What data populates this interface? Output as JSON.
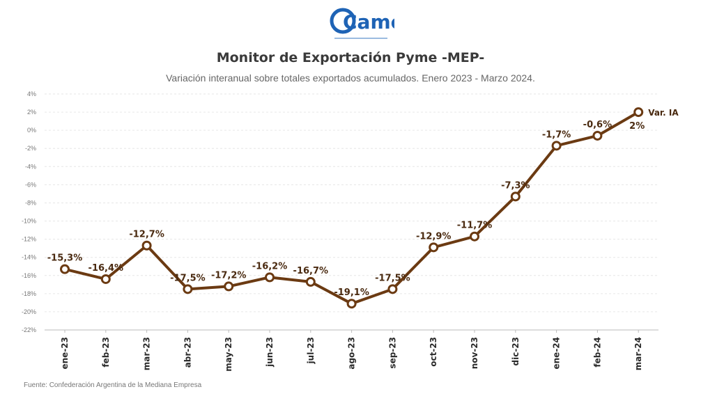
{
  "header": {
    "logo_text": "Came",
    "logo_caption": "Confederación Argentina de la Mediana Empresa",
    "title": "Monitor de Exportación Pyme -MEP-",
    "subtitle": "Variación interanual sobre totales exportados acumulados. Enero 2023 - Marzo 2024."
  },
  "footer": {
    "source": "Fuente: Confederación Argentina de la Mediana Empresa"
  },
  "colors": {
    "line": "#6b3a12",
    "marker_fill": "#ffffff",
    "grid": "#e6e6e6"
  },
  "chart_data": {
    "type": "line",
    "title": "Monitor de Exportación Pyme -MEP-",
    "subtitle": "Variación interanual sobre totales exportados acumulados. Enero 2023 - Marzo 2024.",
    "categories": [
      "ene-23",
      "feb-23",
      "mar-23",
      "abr-23",
      "may-23",
      "jun-23",
      "jul-23",
      "ago-23",
      "sep-23",
      "oct-23",
      "nov-23",
      "dic-23",
      "ene-24",
      "feb-24",
      "mar-24"
    ],
    "series": [
      {
        "name": "Var. IA",
        "values": [
          -15.3,
          -16.4,
          -12.7,
          -17.5,
          -17.2,
          -16.2,
          -16.7,
          -19.1,
          -17.5,
          -12.9,
          -11.7,
          -7.3,
          -1.7,
          -0.6,
          2.0
        ],
        "labels": [
          "-15,3%",
          "-16,4%",
          "-12,7%",
          "-17,5%",
          "-17,2%",
          "-16,2%",
          "-16,7%",
          "-19,1%",
          "-17,5%",
          "-12,9%",
          "-11,7%",
          "-7,3%",
          "-1,7%",
          "-0,6%",
          "2%"
        ]
      }
    ],
    "ylim": [
      -22,
      4
    ],
    "yticks": [
      4,
      2,
      0,
      -2,
      -4,
      -6,
      -8,
      -10,
      -12,
      -14,
      -16,
      -18,
      -20,
      -22
    ],
    "ytick_labels": [
      "4%",
      "2%",
      "0%",
      "-2%",
      "-4%",
      "-6%",
      "-8%",
      "-10%",
      "-12%",
      "-14%",
      "-16%",
      "-18%",
      "-20%",
      "-22%"
    ],
    "grid": true,
    "legend": "inline-right"
  }
}
